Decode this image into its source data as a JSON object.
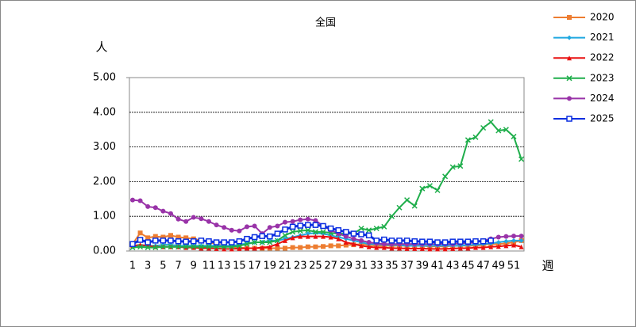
{
  "chart_data": {
    "type": "line",
    "title": "全国",
    "y_label": "人",
    "x_label": "週",
    "categories": [
      1,
      null,
      3,
      null,
      5,
      null,
      7,
      null,
      9,
      null,
      11,
      null,
      13,
      null,
      15,
      null,
      17,
      null,
      19,
      null,
      21,
      null,
      23,
      null,
      25,
      null,
      27,
      null,
      29,
      null,
      31,
      null,
      33,
      null,
      35,
      null,
      37,
      null,
      39,
      null,
      41,
      null,
      43,
      null,
      45,
      null,
      47,
      null,
      49,
      null,
      51,
      null
    ],
    "ylim": [
      0,
      5
    ],
    "yticks": [
      {
        "value": 0,
        "label": "0.00"
      },
      {
        "value": 1,
        "label": "1.00"
      },
      {
        "value": 2,
        "label": "2.00"
      },
      {
        "value": 3,
        "label": "3.00"
      },
      {
        "value": 4,
        "label": "4.00"
      },
      {
        "value": 5,
        "label": "5.00"
      }
    ],
    "grid": true,
    "legend": "right",
    "series": [
      {
        "name": "2020",
        "color": "#ed7d31",
        "marker": "square",
        "values": [
          0.2,
          0.52,
          0.38,
          0.42,
          0.4,
          0.45,
          0.4,
          0.38,
          0.35,
          0.3,
          0.25,
          0.2,
          0.15,
          0.12,
          0.1,
          0.08,
          0.08,
          0.08,
          0.08,
          0.08,
          0.08,
          0.1,
          0.1,
          0.12,
          0.12,
          0.13,
          0.15,
          0.15,
          0.17,
          0.18,
          0.2,
          0.18,
          0.15,
          0.15,
          0.15,
          0.15,
          0.15,
          0.15,
          0.15,
          0.13,
          0.13,
          0.13,
          0.15,
          0.15,
          0.15,
          0.15,
          0.18,
          0.2,
          0.2,
          0.22,
          0.25,
          0.3
        ]
      },
      {
        "name": "2021",
        "color": "#1fa8e0",
        "marker": "diamond",
        "values": [
          0.12,
          0.15,
          0.15,
          0.15,
          0.18,
          0.18,
          0.15,
          0.15,
          0.15,
          0.15,
          0.15,
          0.15,
          0.15,
          0.15,
          0.18,
          0.22,
          0.25,
          0.25,
          0.3,
          0.3,
          0.35,
          0.4,
          0.45,
          0.5,
          0.52,
          0.5,
          0.45,
          0.4,
          0.35,
          0.3,
          0.25,
          0.2,
          0.2,
          0.18,
          0.17,
          0.17,
          0.15,
          0.15,
          0.15,
          0.15,
          0.15,
          0.15,
          0.15,
          0.15,
          0.17,
          0.18,
          0.2,
          0.22,
          0.25,
          0.28,
          0.3,
          0.3
        ]
      },
      {
        "name": "2022",
        "color": "#e81010",
        "marker": "triangle",
        "values": [
          0.15,
          0.18,
          0.15,
          0.12,
          0.12,
          0.12,
          0.12,
          0.1,
          0.1,
          0.08,
          0.08,
          0.07,
          0.06,
          0.06,
          0.07,
          0.08,
          0.08,
          0.1,
          0.12,
          0.2,
          0.3,
          0.38,
          0.42,
          0.42,
          0.42,
          0.42,
          0.4,
          0.35,
          0.25,
          0.2,
          0.15,
          0.12,
          0.1,
          0.1,
          0.08,
          0.08,
          0.07,
          0.07,
          0.07,
          0.06,
          0.06,
          0.06,
          0.07,
          0.08,
          0.08,
          0.1,
          0.1,
          0.12,
          0.13,
          0.15,
          0.17,
          0.12
        ]
      },
      {
        "name": "2023",
        "color": "#1fae4b",
        "marker": "x",
        "values": [
          0.1,
          0.12,
          0.1,
          0.1,
          0.12,
          0.12,
          0.12,
          0.12,
          0.12,
          0.12,
          0.12,
          0.12,
          0.12,
          0.12,
          0.15,
          0.2,
          0.25,
          0.25,
          0.25,
          0.3,
          0.45,
          0.55,
          0.58,
          0.6,
          0.55,
          0.55,
          0.52,
          0.5,
          0.5,
          0.5,
          0.65,
          0.6,
          0.65,
          0.7,
          1.0,
          1.25,
          1.47,
          1.3,
          1.8,
          1.88,
          1.75,
          2.15,
          2.42,
          2.45,
          3.2,
          3.28,
          3.55,
          3.72,
          3.47,
          3.5,
          3.3,
          2.65
        ]
      },
      {
        "name": "2024",
        "color": "#9933a8",
        "marker": "circle",
        "values": [
          1.47,
          1.45,
          1.28,
          1.25,
          1.15,
          1.08,
          0.92,
          0.85,
          0.97,
          0.93,
          0.85,
          0.75,
          0.68,
          0.6,
          0.58,
          0.7,
          0.72,
          0.5,
          0.68,
          0.72,
          0.83,
          0.85,
          0.9,
          0.92,
          0.88,
          0.72,
          0.6,
          0.5,
          0.42,
          0.35,
          0.3,
          0.25,
          0.22,
          0.2,
          0.2,
          0.2,
          0.2,
          0.2,
          0.2,
          0.2,
          0.2,
          0.2,
          0.2,
          0.22,
          0.22,
          0.25,
          0.3,
          0.35,
          0.4,
          0.42,
          0.43,
          0.43
        ]
      },
      {
        "name": "2025",
        "color": "#0a2ee0",
        "marker": "hollow-square",
        "values": [
          0.2,
          0.32,
          0.25,
          0.3,
          0.3,
          0.3,
          0.28,
          0.27,
          0.28,
          0.3,
          0.28,
          0.25,
          0.25,
          0.25,
          0.28,
          0.35,
          0.4,
          0.43,
          0.42,
          0.5,
          0.62,
          0.7,
          0.73,
          0.75,
          0.75,
          0.72,
          0.65,
          0.6,
          0.55,
          0.5,
          0.48,
          0.45,
          0.3,
          0.33,
          0.3,
          0.3,
          0.3,
          0.28,
          0.27,
          0.27,
          0.25,
          0.25,
          0.27,
          0.27,
          0.27,
          0.28,
          0.28,
          0.3,
          null,
          null,
          null,
          null
        ]
      }
    ]
  }
}
